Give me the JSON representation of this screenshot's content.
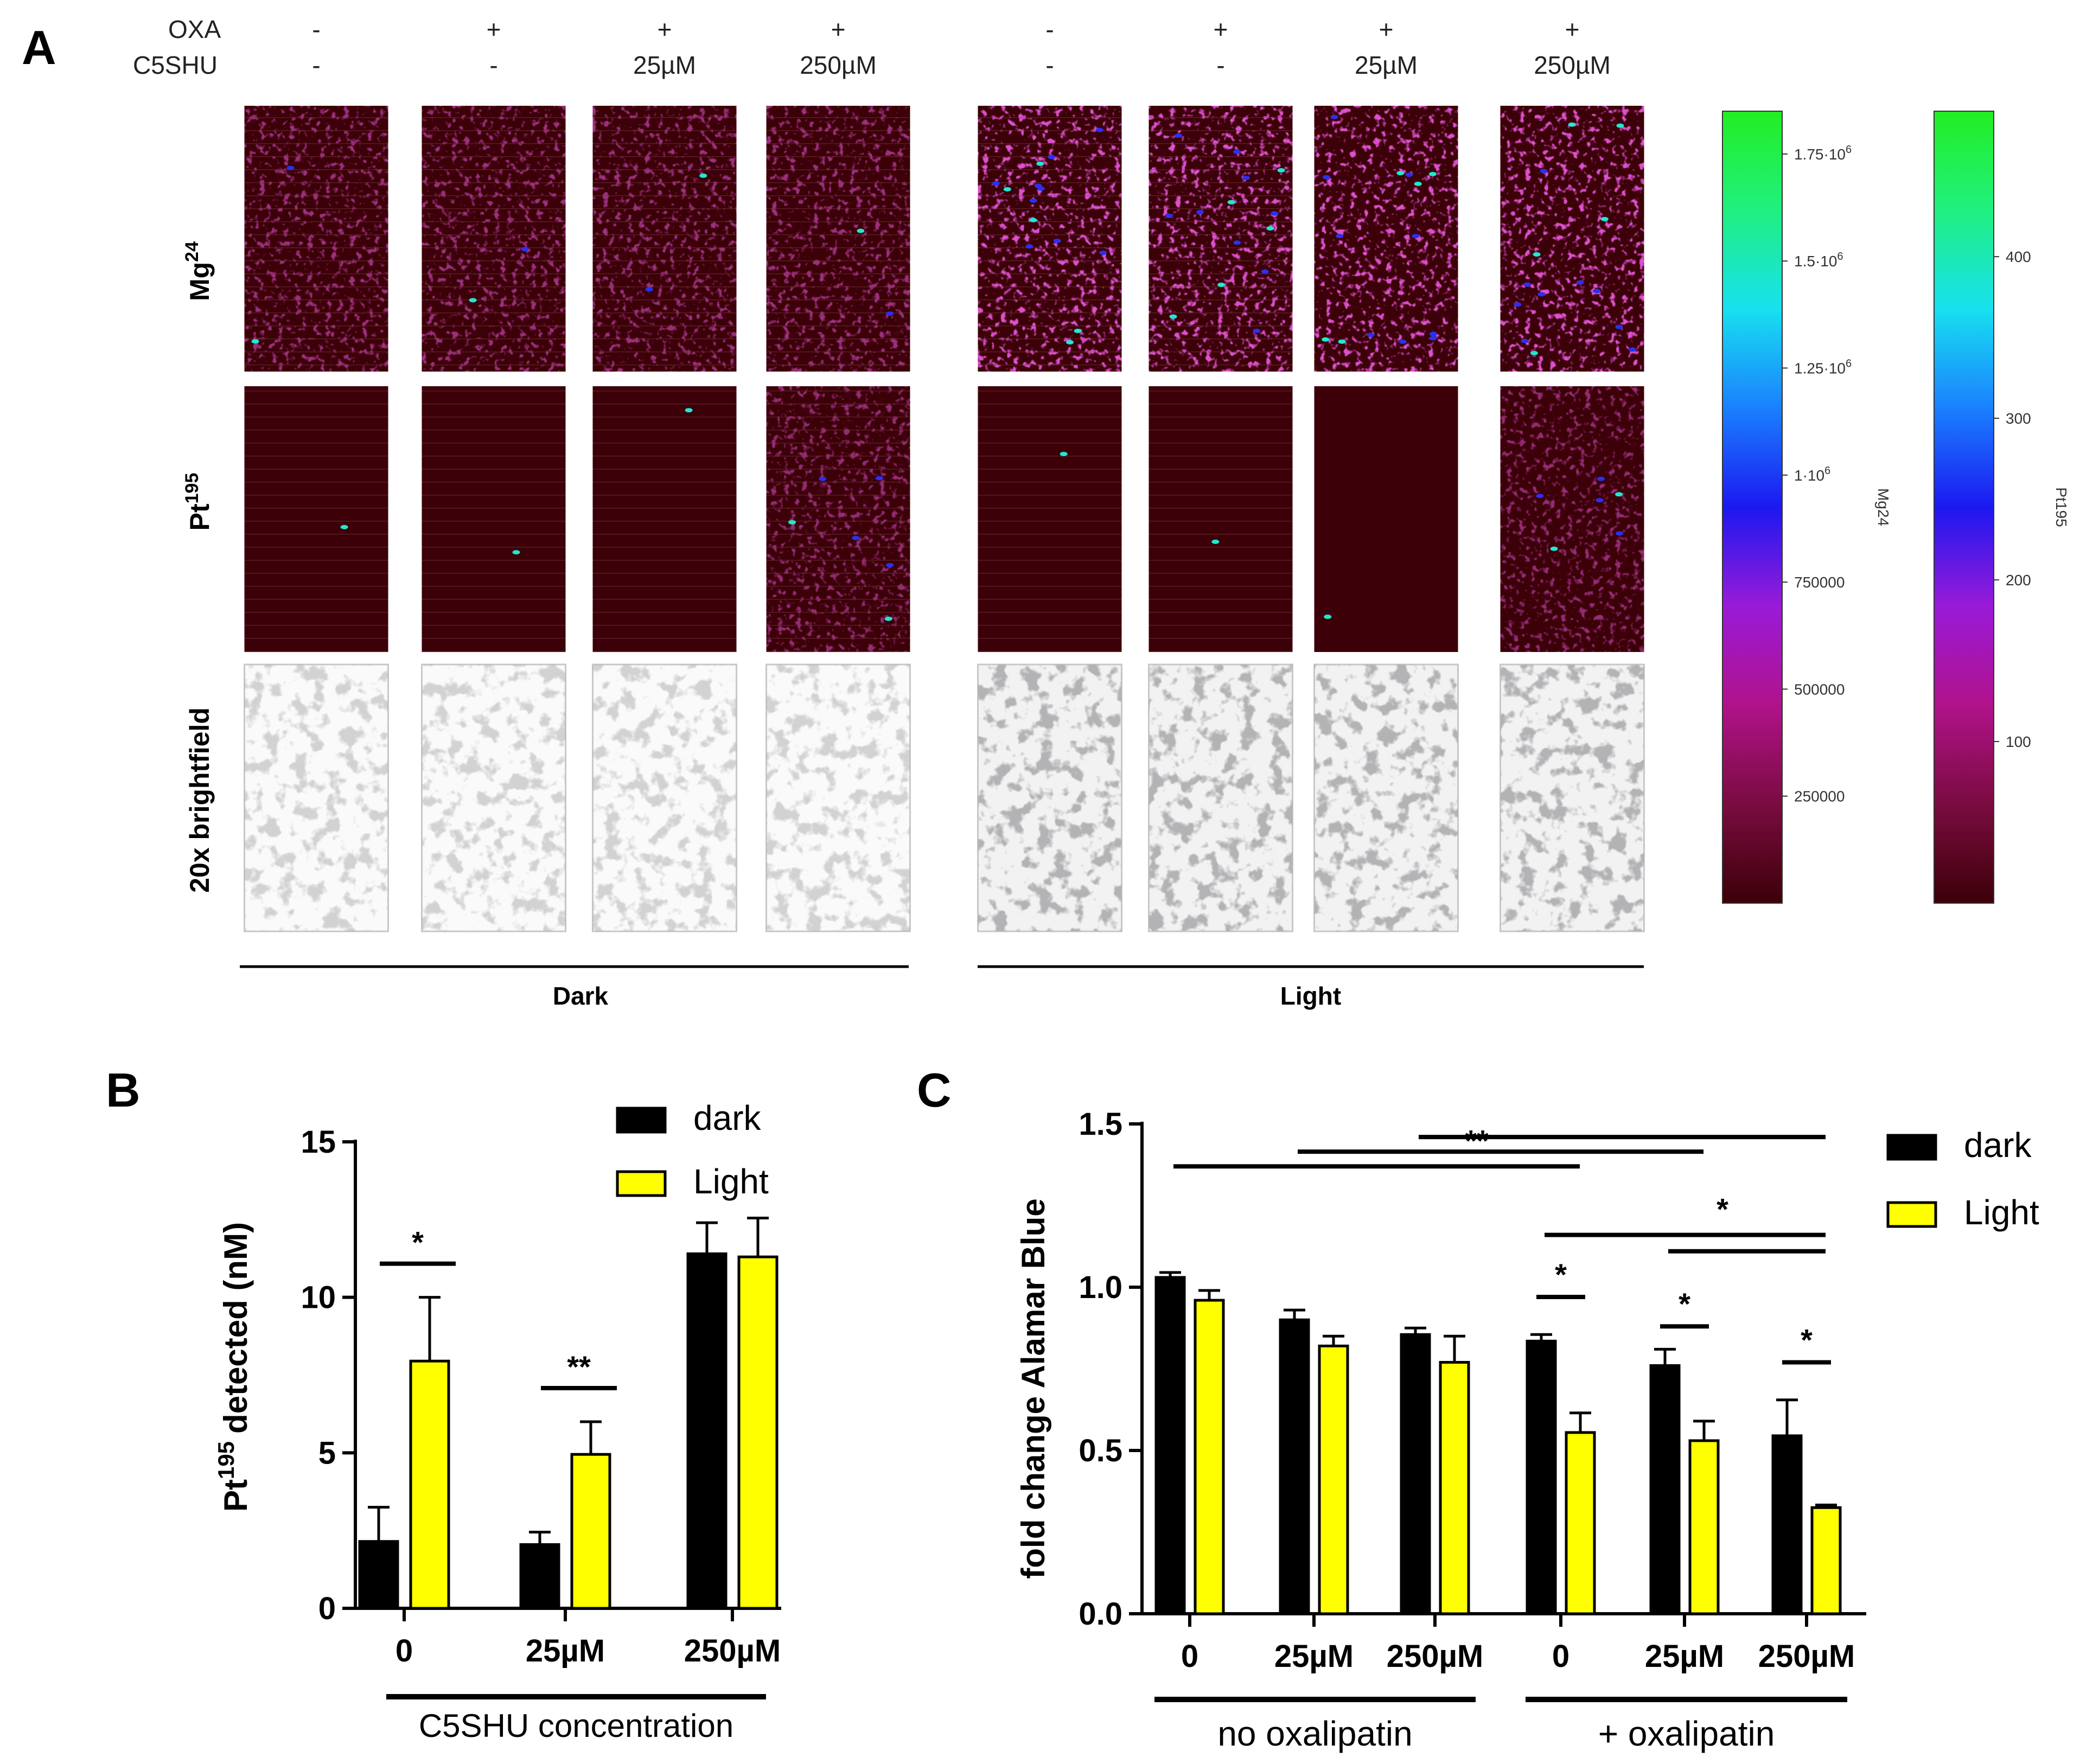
{
  "panel_a": {
    "letter": "A",
    "header_row_labels": [
      "OXA",
      "C5SHU"
    ],
    "columns": [
      {
        "oxa": "-",
        "c5shu": "-"
      },
      {
        "oxa": "+",
        "c5shu": "-"
      },
      {
        "oxa": "+",
        "c5shu": "25µM"
      },
      {
        "oxa": "+",
        "c5shu": "250µM"
      },
      {
        "oxa": "-",
        "c5shu": "-"
      },
      {
        "oxa": "+",
        "c5shu": "-"
      },
      {
        "oxa": "+",
        "c5shu": "25µM"
      },
      {
        "oxa": "+",
        "c5shu": "250µM"
      }
    ],
    "row_labels": {
      "mg": {
        "base": "Mg",
        "sup": "24"
      },
      "pt": {
        "base": "Pt",
        "sup": "195"
      },
      "bf": "20x brightfield"
    },
    "group_labels": [
      "Dark",
      "Light"
    ],
    "colorbar_mg": {
      "label": "Mg24",
      "ticks": [
        {
          "text": "1.75·10",
          "exp": "6",
          "value": 1750000
        },
        {
          "text": "1.5·10",
          "exp": "6",
          "value": 1500000
        },
        {
          "text": "1.25·10",
          "exp": "6",
          "value": 1250000
        },
        {
          "text": "1·10",
          "exp": "6",
          "value": 1000000
        },
        {
          "text": "750000",
          "exp": "",
          "value": 750000
        },
        {
          "text": "500000",
          "exp": "",
          "value": 500000
        },
        {
          "text": "250000",
          "exp": "",
          "value": 250000
        }
      ],
      "range": [
        0,
        1850000
      ]
    },
    "colorbar_pt": {
      "label": "Pt195",
      "ticks": [
        {
          "text": "400",
          "value": 400
        },
        {
          "text": "300",
          "value": 300
        },
        {
          "text": "200",
          "value": 200
        },
        {
          "text": "100",
          "value": 100
        }
      ],
      "range": [
        0,
        490
      ]
    },
    "colormap": [
      "#3c0008",
      "#7a0c40",
      "#b0128a",
      "#9a1ad8",
      "#1c18f0",
      "#1a80ff",
      "#18e0f0",
      "#20f080",
      "#22ee22"
    ]
  },
  "chart_data": [
    {
      "panel": "B",
      "type": "bar",
      "categories": [
        "0",
        "25µM",
        "250µM"
      ],
      "group_label": "C5SHU concentration",
      "ylabel": "detected (nM)",
      "ylabel_prefix": "Pt",
      "ylabel_sup": "195",
      "ylim": [
        0,
        15
      ],
      "yticks": [
        0,
        5,
        10,
        15
      ],
      "legend_placement": "top-right",
      "series": [
        {
          "name": "dark",
          "color": "#000000",
          "values": [
            2.15,
            2.05,
            11.4
          ],
          "errors": [
            1.1,
            0.4,
            1.0
          ]
        },
        {
          "name": "Light",
          "color": "#ffff00",
          "values": [
            7.95,
            4.95,
            11.3
          ],
          "errors": [
            2.05,
            1.05,
            1.25
          ]
        }
      ],
      "significance": [
        {
          "label": "*",
          "category": 0
        },
        {
          "label": "**",
          "category": 1
        }
      ]
    },
    {
      "panel": "C",
      "type": "bar",
      "categories": [
        "0",
        "25µM",
        "250µM",
        "0",
        "25µM",
        "250µM"
      ],
      "groups": [
        {
          "label": "no oxalipatin",
          "range": [
            0,
            2
          ]
        },
        {
          "label": "+ oxalipatin",
          "range": [
            3,
            5
          ]
        }
      ],
      "ylabel": "fold change Alamar Blue",
      "ylim": [
        0,
        1.5
      ],
      "yticks": [
        "0.0",
        "0.5",
        "1.0",
        "1.5"
      ],
      "legend_placement": "top-right",
      "series": [
        {
          "name": "dark",
          "color": "#000000",
          "values": [
            1.03,
            0.9,
            0.855,
            0.835,
            0.76,
            0.545
          ],
          "errors": [
            0.015,
            0.03,
            0.02,
            0.02,
            0.05,
            0.11
          ]
        },
        {
          "name": "Light",
          "color": "#ffff00",
          "values": [
            0.96,
            0.82,
            0.77,
            0.555,
            0.53,
            0.325
          ],
          "errors": [
            0.03,
            0.03,
            0.08,
            0.06,
            0.06,
            0.008
          ]
        }
      ],
      "significance": [
        {
          "label": "**",
          "from": 0,
          "to": 3,
          "level": 1.37
        },
        {
          "label": "",
          "from": 1,
          "to": 4,
          "level": 1.415
        },
        {
          "label": "",
          "from": 2,
          "to": 5,
          "level": 1.46
        },
        {
          "label": "*",
          "from": 3,
          "to": 5,
          "level": 1.16
        },
        {
          "label": "",
          "from": 4,
          "to": 5,
          "level": 1.11
        },
        {
          "label": "*",
          "category": 3,
          "level": 0.97
        },
        {
          "label": "*",
          "category": 4,
          "level": 0.88
        },
        {
          "label": "*",
          "category": 5,
          "level": 0.77
        }
      ]
    }
  ]
}
